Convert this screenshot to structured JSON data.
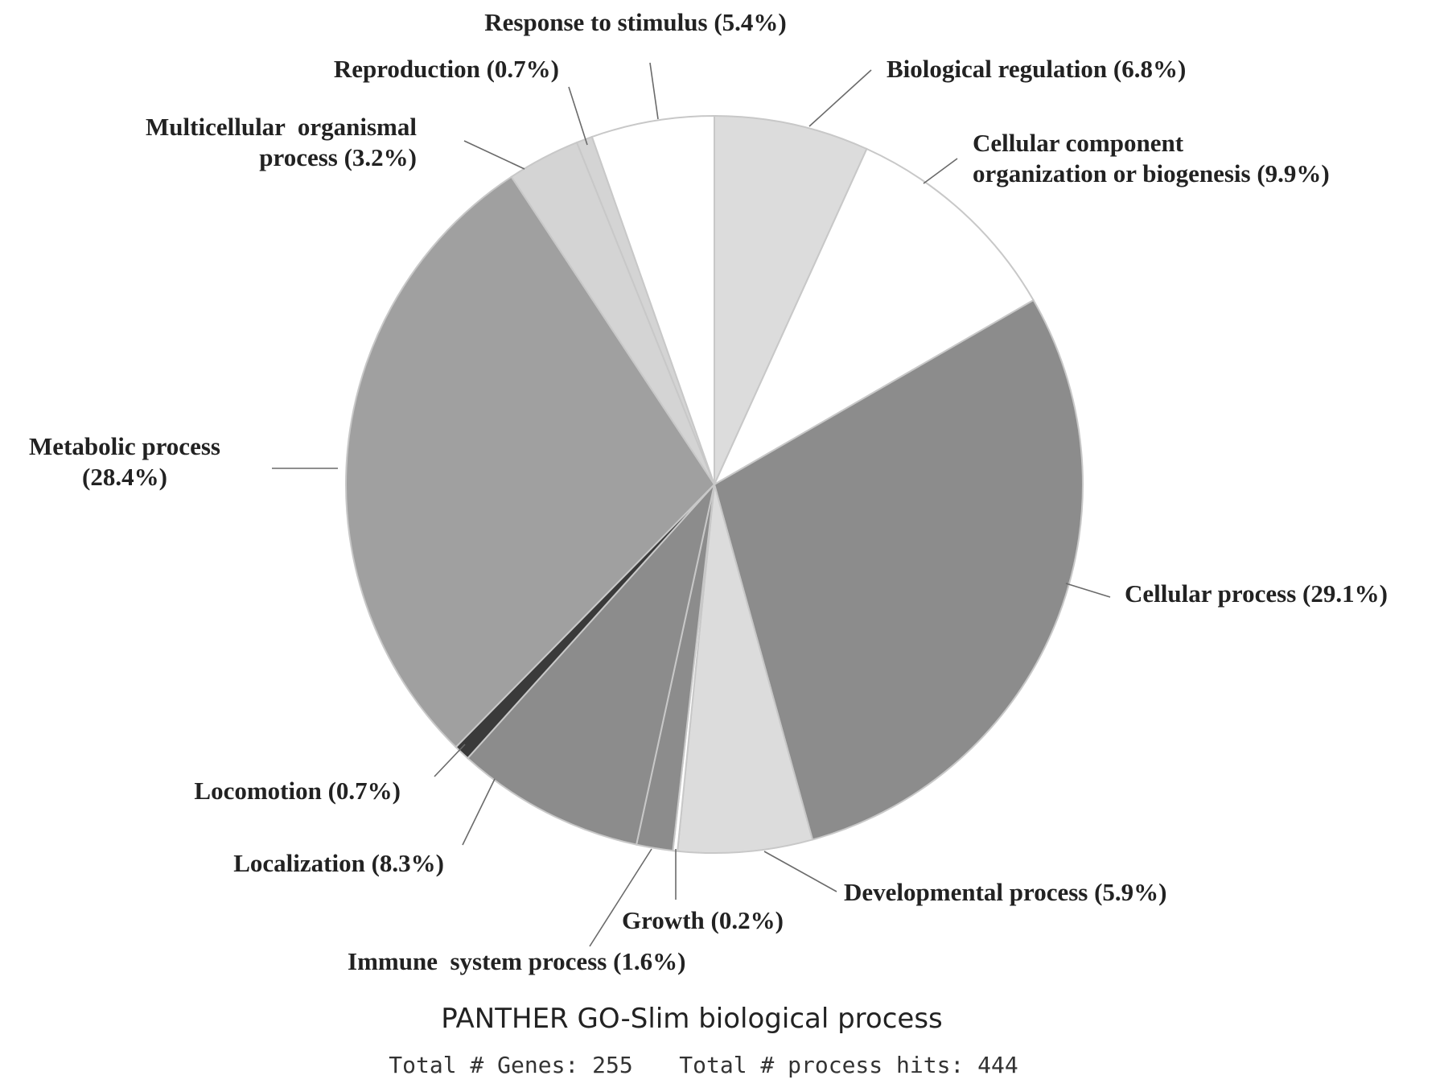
{
  "chart_data": {
    "type": "pie",
    "title": "PANTHER GO-Slim biological process",
    "subtitle_genes": "Total # Genes: 255",
    "subtitle_hits": "Total # process hits: 444",
    "slices": [
      {
        "name": "Biological regulation",
        "value": 6.8,
        "color": "#dcdcdc",
        "label_lines": [
          "Biological regulation (6.8%)"
        ],
        "anchor": "start"
      },
      {
        "name": "Cellular component organization or biogenesis",
        "value": 9.9,
        "color": "#ffffff",
        "label_lines": [
          "Cellular component",
          "organization or biogenesis (9.9%)"
        ],
        "anchor": "start"
      },
      {
        "name": "Cellular process",
        "value": 29.1,
        "color": "#8c8c8c",
        "label_lines": [
          "Cellular process (29.1%)"
        ],
        "anchor": "start"
      },
      {
        "name": "Developmental process",
        "value": 5.9,
        "color": "#dcdcdc",
        "label_lines": [
          "Developmental process (5.9%)"
        ],
        "anchor": "start"
      },
      {
        "name": "Growth",
        "value": 0.2,
        "color": "#ffffff",
        "label_lines": [
          "Growth (0.2%)"
        ],
        "anchor": "start"
      },
      {
        "name": "Immune system process",
        "value": 1.6,
        "color": "#8c8c8c",
        "label_lines": [
          "Immune  system process (1.6%)"
        ],
        "anchor": "start"
      },
      {
        "name": "Localization",
        "value": 8.3,
        "color": "#8c8c8c",
        "label_lines": [
          "Localization (8.3%)"
        ],
        "anchor": "end"
      },
      {
        "name": "Locomotion",
        "value": 0.7,
        "color": "#3a3a3a",
        "label_lines": [
          "Locomotion (0.7%)"
        ],
        "anchor": "end"
      },
      {
        "name": "Metabolic process",
        "value": 28.4,
        "color": "#a0a0a0",
        "label_lines": [
          "Metabolic process",
          "(28.4%)"
        ],
        "anchor": "middle"
      },
      {
        "name": "Multicellular organismal process",
        "value": 3.2,
        "color": "#d4d4d4",
        "label_lines": [
          "Multicellular  organismal",
          "process (3.2%)"
        ],
        "anchor": "end"
      },
      {
        "name": "Reproduction",
        "value": 0.7,
        "color": "#d4d4d4",
        "label_lines": [
          "Reproduction (0.7%)"
        ],
        "anchor": "end"
      },
      {
        "name": "Response to stimulus",
        "value": 5.4,
        "color": "#ffffff",
        "label_lines": [
          "Response to stimulus (5.4%)"
        ],
        "anchor": "middle"
      }
    ],
    "start_angle_deg": 0,
    "direction": "clockwise",
    "legend": "none"
  }
}
